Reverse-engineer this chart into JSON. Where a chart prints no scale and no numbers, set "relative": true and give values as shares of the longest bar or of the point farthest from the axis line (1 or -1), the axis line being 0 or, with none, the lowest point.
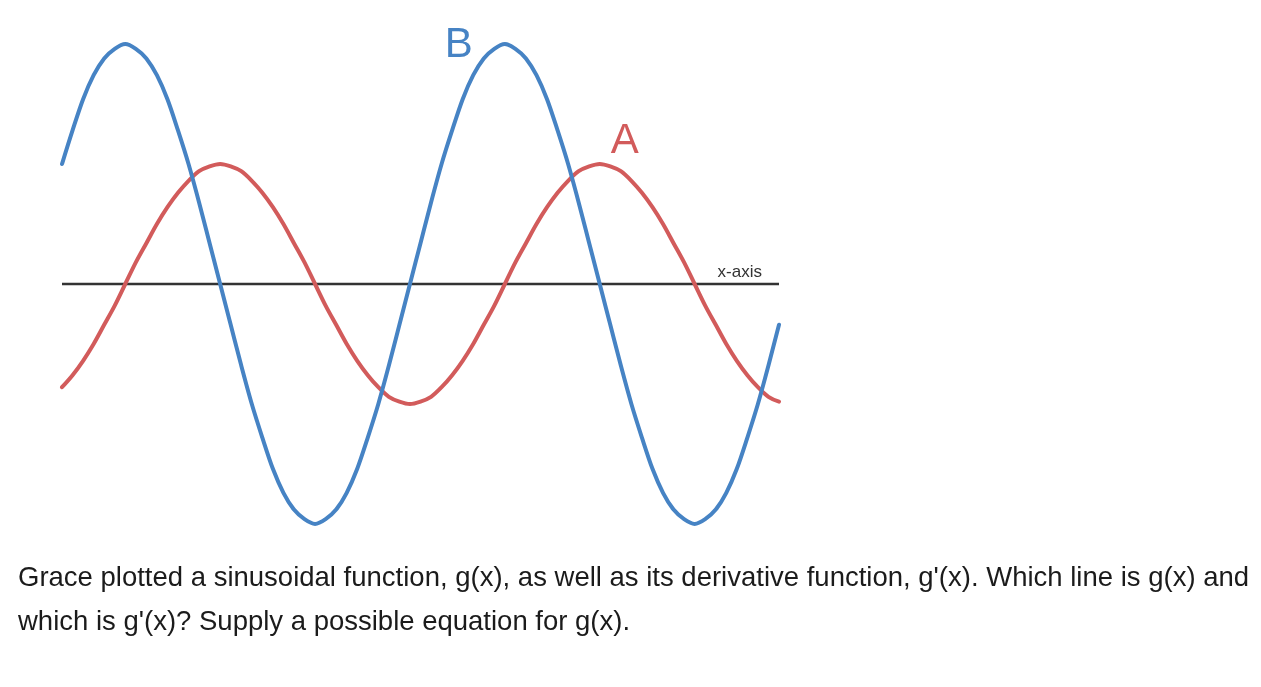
{
  "chart_data": {
    "type": "line",
    "relative": true,
    "xlabel": "x-axis",
    "categories": [
      null,
      null,
      null,
      null,
      null,
      null,
      null,
      null,
      null,
      null,
      null,
      null,
      null,
      null,
      null,
      null,
      null,
      null,
      null,
      null,
      null,
      null,
      null,
      null,
      null,
      null,
      null,
      null,
      null,
      null,
      null,
      null,
      null,
      null,
      null,
      null,
      null,
      null,
      null,
      null,
      null,
      null,
      null,
      null,
      null,
      null,
      null,
      null,
      null,
      null,
      null,
      null,
      null,
      null,
      null,
      null,
      null,
      null,
      null,
      null,
      null,
      null,
      null,
      null,
      null,
      null,
      null,
      null,
      null
    ],
    "series": [
      {
        "name": "A",
        "color": "#d25b5b",
        "values": [
          -0.43,
          -0.38,
          -0.32,
          -0.25,
          -0.17,
          -0.09,
          0,
          0.09,
          0.17,
          0.25,
          0.32,
          0.38,
          0.43,
          0.47,
          0.49,
          0.5,
          0.49,
          0.47,
          0.43,
          0.38,
          0.32,
          0.25,
          0.17,
          0.09,
          0,
          -0.09,
          -0.17,
          -0.25,
          -0.32,
          -0.38,
          -0.43,
          -0.47,
          -0.49,
          -0.5,
          -0.49,
          -0.47,
          -0.43,
          -0.38,
          -0.32,
          -0.25,
          -0.17,
          -0.09,
          0,
          0.09,
          0.17,
          0.25,
          0.32,
          0.38,
          0.43,
          0.47,
          0.49,
          0.5,
          0.49,
          0.47,
          0.43,
          0.38,
          0.32,
          0.25,
          0.17,
          0.09,
          0,
          -0.09,
          -0.17,
          -0.25,
          -0.32,
          -0.38,
          -0.43,
          -0.47,
          -0.49
        ]
      },
      {
        "name": "B",
        "color": "#4683c4",
        "values": [
          0.5,
          0.64,
          0.77,
          0.87,
          0.94,
          0.98,
          1,
          0.98,
          0.94,
          0.87,
          0.77,
          0.64,
          0.5,
          0.34,
          0.17,
          0,
          -0.17,
          -0.34,
          -0.5,
          -0.64,
          -0.77,
          -0.87,
          -0.94,
          -0.98,
          -1,
          -0.98,
          -0.94,
          -0.87,
          -0.77,
          -0.64,
          -0.5,
          -0.34,
          -0.17,
          0,
          0.17,
          0.34,
          0.5,
          0.64,
          0.77,
          0.87,
          0.94,
          0.98,
          1,
          0.98,
          0.94,
          0.87,
          0.77,
          0.64,
          0.5,
          0.34,
          0.17,
          0,
          -0.17,
          -0.34,
          -0.5,
          -0.64,
          -0.77,
          -0.87,
          -0.94,
          -0.98,
          -1,
          -0.98,
          -0.94,
          -0.87,
          -0.77,
          -0.64,
          -0.5,
          -0.34,
          -0.17
        ]
      }
    ],
    "annotations": [
      "Grace plotted a sinusoidal function, g(x), as well as its derivative function, g'(x). Which line is g(x) and which is g'(x)? Supply a possible equation for g(x)."
    ]
  }
}
